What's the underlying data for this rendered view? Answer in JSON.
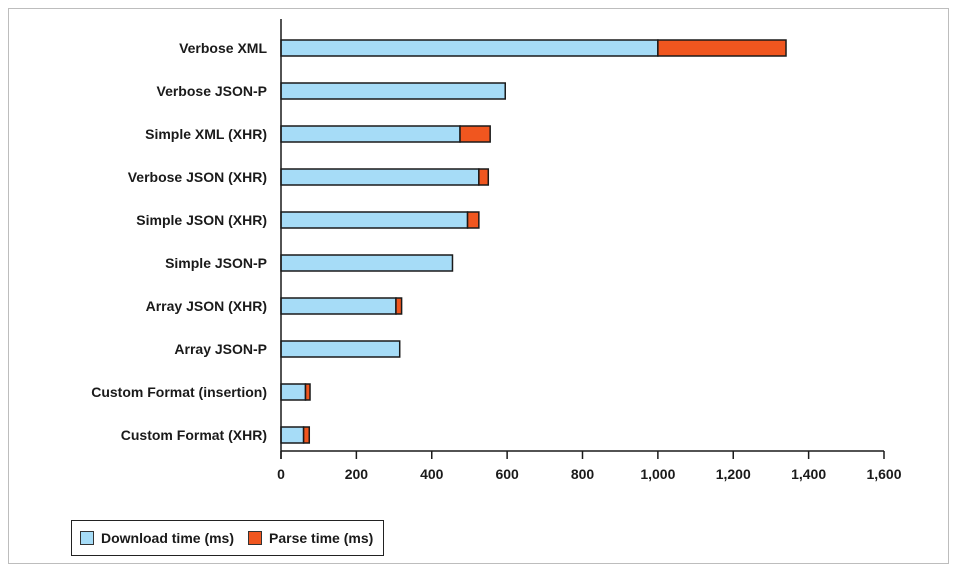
{
  "chart_data": {
    "type": "bar",
    "orientation": "horizontal",
    "stacked": true,
    "categories": [
      "Verbose XML",
      "Verbose JSON-P",
      "Simple XML (XHR)",
      "Verbose JSON (XHR)",
      "Simple JSON (XHR)",
      "Simple JSON-P",
      "Array JSON (XHR)",
      "Array JSON-P",
      "Custom Format (insertion)",
      "Custom Format (XHR)"
    ],
    "series": [
      {
        "name": "Download time (ms)",
        "color": "#a6dcf7",
        "values": [
          1000,
          595,
          475,
          525,
          495,
          455,
          305,
          315,
          65,
          60
        ]
      },
      {
        "name": "Parse time (ms)",
        "color": "#f0561f",
        "values": [
          340,
          0,
          80,
          25,
          30,
          0,
          15,
          0,
          12,
          15
        ]
      }
    ],
    "xlim": [
      0,
      1600
    ],
    "xticks": [
      0,
      200,
      400,
      600,
      800,
      1000,
      1200,
      1400,
      1600
    ],
    "xtick_labels": [
      "0",
      "200",
      "400",
      "600",
      "800",
      "1,000",
      "1,200",
      "1,400",
      "1,600"
    ],
    "grid": false,
    "legend_position": "bottom-left"
  }
}
